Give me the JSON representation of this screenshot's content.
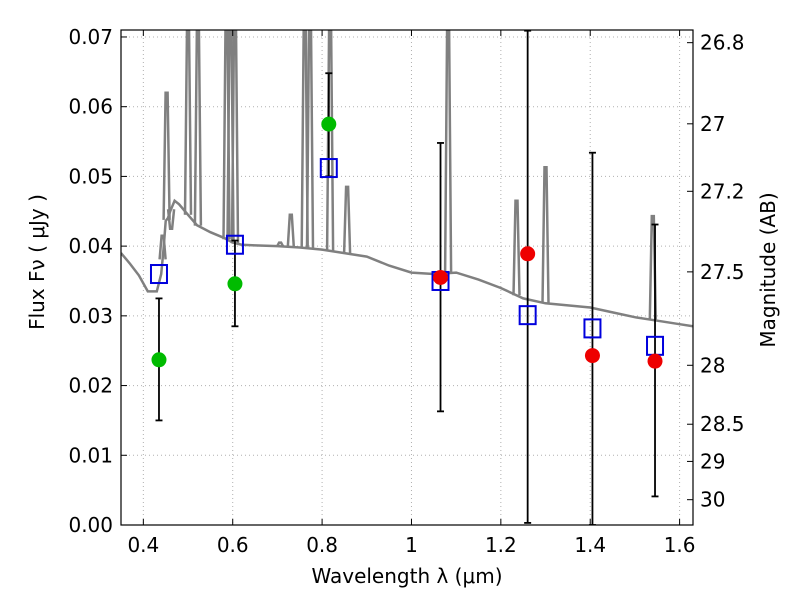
{
  "chart_data": {
    "type": "scatter",
    "title": "",
    "xlabel": "Wavelength  λ (μm)",
    "ylabel": "Flux  Fν  ( μJy )",
    "y2label": "Magnitude (AB)",
    "xlim": [
      0.35,
      1.63
    ],
    "ylim": [
      0.0,
      0.071
    ],
    "grid": true,
    "legend": "none",
    "x_ticks": [
      0.4,
      0.6,
      0.8,
      1.0,
      1.2,
      1.4,
      1.6
    ],
    "x_tick_labels": [
      "0.4",
      "0.6",
      "0.8",
      "1",
      "1.2",
      "1.4",
      "1.6"
    ],
    "y_ticks": [
      0.0,
      0.01,
      0.02,
      0.03,
      0.04,
      0.05,
      0.06,
      0.07
    ],
    "y_tick_labels": [
      "0.00",
      "0.01",
      "0.02",
      "0.03",
      "0.04",
      "0.05",
      "0.06",
      "0.07"
    ],
    "y2_ticks": [
      26.8,
      27,
      27.2,
      27.5,
      28,
      28.5,
      29,
      30
    ],
    "y2_tick_labels": [
      "26.8",
      "27",
      "27.2",
      "27.5",
      "28",
      "28.5",
      "29",
      "30"
    ],
    "colors": {
      "model": "#808080",
      "optical": "#00bb00",
      "nir": "#ee0000",
      "model_flux": "#0000dd",
      "errorbar": "#000000",
      "grid": "#b0b0b0"
    },
    "model_spectrum": {
      "x": [
        0.35,
        0.37,
        0.39,
        0.41,
        0.43,
        0.44,
        0.445,
        0.45,
        0.455,
        0.46,
        0.47,
        0.48,
        0.5,
        0.52,
        0.55,
        0.58,
        0.6,
        0.62,
        0.65,
        0.7,
        0.75,
        0.8,
        0.85,
        0.9,
        0.95,
        1.0,
        1.05,
        1.1,
        1.15,
        1.2,
        1.25,
        1.3,
        1.35,
        1.4,
        1.45,
        1.5,
        1.55,
        1.6,
        1.63
      ],
      "y": [
        0.039,
        0.0375,
        0.0358,
        0.0335,
        0.0335,
        0.036,
        0.0395,
        0.0436,
        0.044,
        0.045,
        0.0465,
        0.046,
        0.0445,
        0.043,
        0.042,
        0.0412,
        0.0405,
        0.0402,
        0.0401,
        0.04,
        0.0398,
        0.0395,
        0.039,
        0.0385,
        0.0372,
        0.0362,
        0.036,
        0.0362,
        0.0352,
        0.034,
        0.0325,
        0.0318,
        0.0315,
        0.0312,
        0.0305,
        0.0298,
        0.0293,
        0.0288,
        0.0285
      ]
    },
    "emission_lines": [
      {
        "x": 0.443,
        "y": 0.0415
      },
      {
        "x": 0.452,
        "y": 0.062
      },
      {
        "x": 0.462,
        "y": 0.0425
      },
      {
        "x": 0.5,
        "y": 0.0715
      },
      {
        "x": 0.522,
        "y": 0.0715
      },
      {
        "x": 0.586,
        "y": 0.0715
      },
      {
        "x": 0.595,
        "y": 0.0715
      },
      {
        "x": 0.605,
        "y": 0.0715
      },
      {
        "x": 0.706,
        "y": 0.0405
      },
      {
        "x": 0.73,
        "y": 0.0445
      },
      {
        "x": 0.761,
        "y": 0.0715
      },
      {
        "x": 0.773,
        "y": 0.0715
      },
      {
        "x": 0.818,
        "y": 0.0715
      },
      {
        "x": 0.856,
        "y": 0.0485
      },
      {
        "x": 1.082,
        "y": 0.0715
      },
      {
        "x": 1.235,
        "y": 0.0465
      },
      {
        "x": 1.3,
        "y": 0.0513
      },
      {
        "x": 1.54,
        "y": 0.0443
      }
    ],
    "series": [
      {
        "x": [
          0.435,
          0.605,
          0.815
        ],
        "y": [
          0.0237,
          0.0346,
          0.0575
        ],
        "yerr_low": [
          0.015,
          0.0285,
          0.05
        ],
        "yerr_high": [
          0.0325,
          0.0408,
          0.0648
        ],
        "marker": "filled-circle"
      },
      {
        "x": [
          1.065,
          1.26,
          1.405,
          1.545
        ],
        "y": [
          0.0355,
          0.0389,
          0.0243,
          0.0235
        ],
        "yerr_low": [
          0.0163,
          0.0003,
          0.0,
          0.0041
        ],
        "yerr_high": [
          0.0548,
          0.0709,
          0.0534,
          0.0431
        ],
        "marker": "filled-circle"
      },
      {
        "x": [
          0.435,
          0.605,
          0.815,
          1.065,
          1.26,
          1.405,
          1.545
        ],
        "y": [
          0.036,
          0.0402,
          0.0512,
          0.035,
          0.0301,
          0.0282,
          0.0257
        ],
        "marker": "open-square"
      }
    ]
  }
}
